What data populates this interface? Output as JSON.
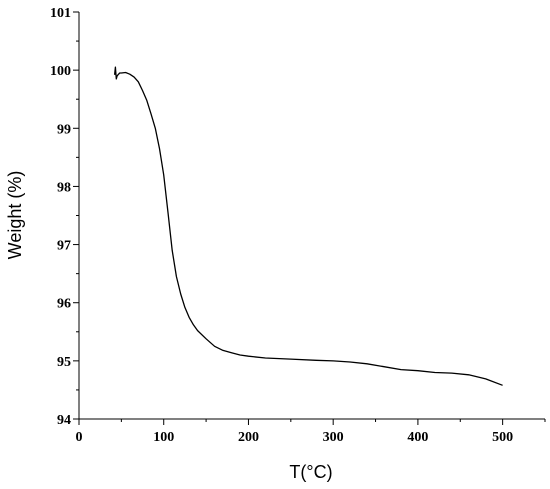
{
  "chart_data": {
    "type": "line",
    "title": "",
    "xlabel": "T(°C)",
    "ylabel": "Weight (%)",
    "xlim": [
      0,
      550
    ],
    "ylim": [
      94,
      101
    ],
    "xticks": [
      0,
      100,
      200,
      300,
      400,
      500
    ],
    "yticks": [
      94,
      95,
      96,
      97,
      98,
      99,
      100,
      101
    ],
    "grid": false,
    "legend": "none",
    "line_color": "#000000",
    "series": [
      {
        "x": [
          42,
          43,
          44,
          45,
          46,
          48,
          50,
          55,
          60,
          65,
          70,
          75,
          80,
          85,
          90,
          95,
          100,
          105,
          110,
          115,
          120,
          125,
          130,
          135,
          140,
          150,
          160,
          170,
          180,
          190,
          200,
          220,
          250,
          280,
          300,
          320,
          340,
          360,
          380,
          400,
          420,
          440,
          460,
          480,
          500
        ],
        "y": [
          99.92,
          100.05,
          99.85,
          99.9,
          99.92,
          99.95,
          99.95,
          99.96,
          99.93,
          99.88,
          99.8,
          99.65,
          99.48,
          99.25,
          99.0,
          98.65,
          98.2,
          97.55,
          96.9,
          96.45,
          96.15,
          95.92,
          95.75,
          95.62,
          95.52,
          95.38,
          95.25,
          95.18,
          95.14,
          95.1,
          95.08,
          95.05,
          95.03,
          95.01,
          95.0,
          94.98,
          94.95,
          94.9,
          94.85,
          94.83,
          94.8,
          94.79,
          94.76,
          94.69,
          94.58
        ]
      }
    ]
  }
}
